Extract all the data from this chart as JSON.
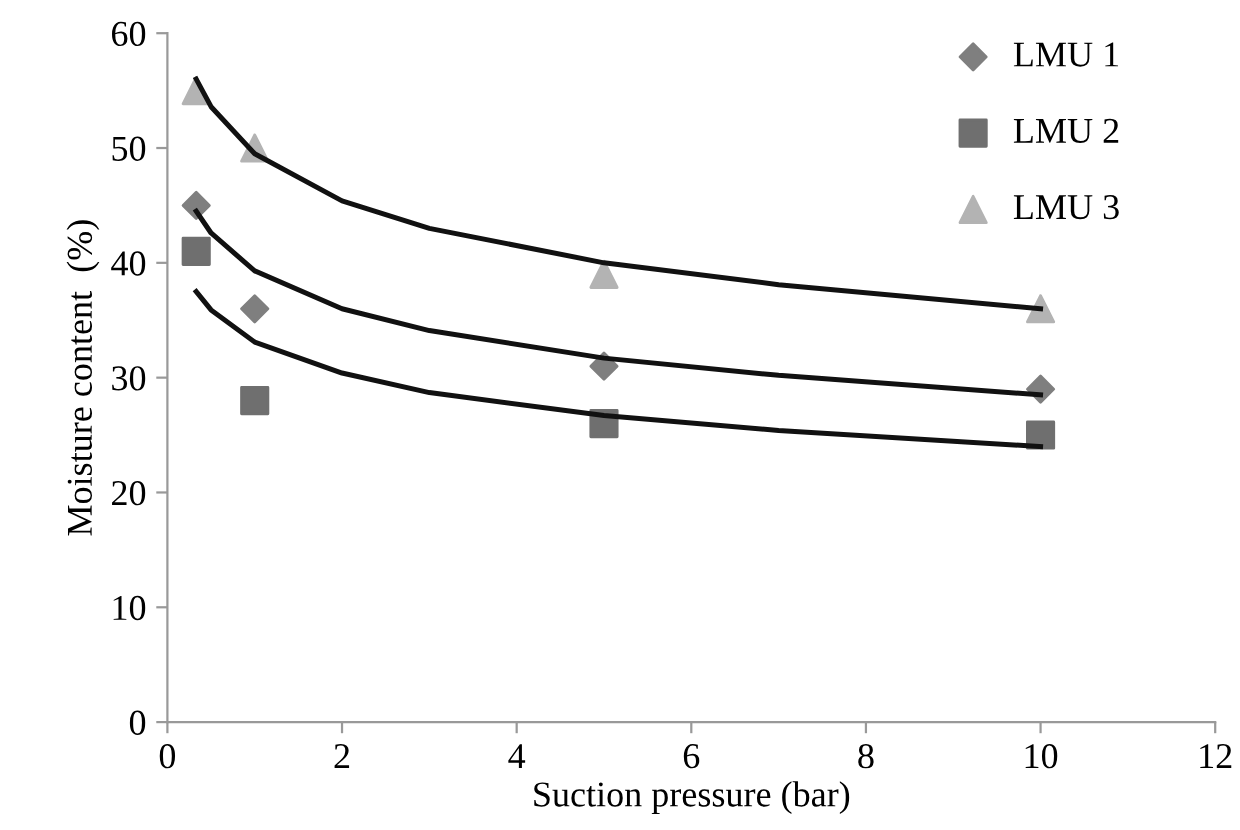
{
  "chart_data": {
    "type": "scatter",
    "xlabel": "Suction pressure (bar)",
    "ylabel": "Moisture content  (%)",
    "xlim": [
      0,
      12
    ],
    "xticks": [
      0,
      2,
      4,
      6,
      8,
      10,
      12
    ],
    "ylim": [
      0,
      60
    ],
    "yticks": [
      0,
      10,
      20,
      30,
      40,
      50,
      60
    ],
    "grid": false,
    "legend": "top right",
    "series": [
      {
        "name": "LMU 1",
        "color": "#7f7f7f",
        "marker": "diamond",
        "x": [
          0.33,
          1,
          5,
          10
        ],
        "values": [
          45,
          36,
          31,
          29
        ]
      },
      {
        "name": "LMU 2",
        "color": "#6f6f6f",
        "marker": "square",
        "x": [
          0.33,
          1,
          5,
          10
        ],
        "values": [
          41,
          28,
          26,
          25
        ]
      },
      {
        "name": "LMU 3",
        "color": "#b3b3b3",
        "marker": "triangle",
        "x": [
          0.33,
          1,
          5,
          10
        ],
        "values": [
          55,
          50,
          39,
          36
        ]
      },
      {
        "type": "line",
        "color": "#111111",
        "marker": "none",
        "line_style": "solid",
        "x": [
          0.33,
          0.5,
          1,
          2,
          3,
          5,
          7,
          10
        ],
        "values": [
          56,
          53.6,
          49.5,
          45.4,
          43.0,
          40.0,
          38.1,
          36.0
        ]
      },
      {
        "type": "line",
        "color": "#111111",
        "marker": "none",
        "line_style": "solid",
        "x": [
          0.33,
          0.5,
          1,
          2,
          3,
          5,
          7,
          10
        ],
        "values": [
          44.5,
          42.6,
          39.3,
          36.0,
          34.1,
          31.7,
          30.2,
          28.5
        ]
      },
      {
        "type": "line",
        "color": "#111111",
        "marker": "none",
        "line_style": "solid",
        "x": [
          0.33,
          0.5,
          1,
          2,
          3,
          5,
          7,
          10
        ],
        "values": [
          37.5,
          35.9,
          33.1,
          30.4,
          28.7,
          26.7,
          25.4,
          24.0
        ]
      }
    ]
  }
}
